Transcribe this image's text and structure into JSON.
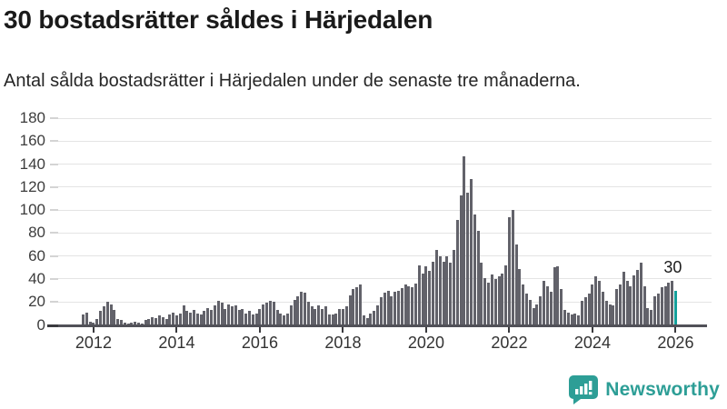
{
  "header": {
    "title": "30 bostadsrätter såldes i Härjedalen",
    "subtitle": "Antal sålda bostadsrätter i Härjedalen under de senaste tre månaderna."
  },
  "chart_data": {
    "type": "bar",
    "title": "30 bostadsrätter såldes i Härjedalen",
    "subtitle": "Antal sålda bostadsrätter i Härjedalen under de senaste tre månaderna.",
    "xlabel": "",
    "ylabel": "",
    "frequency": "monthly",
    "x_start": "2011-10",
    "x_end": "2026-01",
    "ylim": [
      0,
      180
    ],
    "grid": true,
    "yticks": [
      0,
      20,
      40,
      60,
      80,
      100,
      120,
      140,
      160,
      180
    ],
    "xticks": [
      2012,
      2014,
      2016,
      2018,
      2020,
      2022,
      2024,
      2026
    ],
    "bar_color": "#62626a",
    "values": [
      9,
      11,
      3,
      2,
      5,
      12,
      16,
      20,
      18,
      13,
      5,
      4,
      2,
      1,
      2,
      3,
      2,
      1,
      4,
      5,
      7,
      6,
      8,
      7,
      5,
      9,
      11,
      8,
      10,
      17,
      12,
      11,
      13,
      10,
      9,
      12,
      15,
      13,
      17,
      21,
      19,
      14,
      18,
      16,
      17,
      13,
      14,
      10,
      12,
      9,
      10,
      14,
      18,
      19,
      21,
      20,
      13,
      10,
      8,
      10,
      17,
      22,
      25,
      29,
      28,
      20,
      16,
      14,
      17,
      14,
      16,
      9,
      9,
      10,
      14,
      14,
      16,
      26,
      31,
      33,
      35,
      8,
      6,
      10,
      12,
      17,
      24,
      28,
      30,
      25,
      29,
      30,
      32,
      35,
      34,
      33,
      36,
      52,
      45,
      51,
      47,
      55,
      65,
      60,
      55,
      60,
      54,
      65,
      91,
      113,
      147,
      115,
      127,
      96,
      82,
      54,
      41,
      37,
      44,
      40,
      42,
      45,
      52,
      94,
      100,
      70,
      49,
      35,
      27,
      22,
      15,
      18,
      25,
      38,
      34,
      29,
      50,
      51,
      31,
      13,
      11,
      9,
      10,
      8,
      21,
      24,
      27,
      35,
      42,
      38,
      29,
      21,
      18,
      17,
      31,
      35,
      46,
      38,
      34,
      43,
      48,
      54,
      34,
      15,
      13,
      25,
      27,
      33,
      34,
      37,
      38,
      30
    ],
    "highlight": {
      "index": 171,
      "value": 30,
      "label": "30",
      "color": "#14a09b"
    }
  },
  "footer": {
    "brand": "Newsworthy",
    "brand_color": "#2d9e96",
    "logo_icon": "bar-chart-speech-bubble-icon"
  }
}
